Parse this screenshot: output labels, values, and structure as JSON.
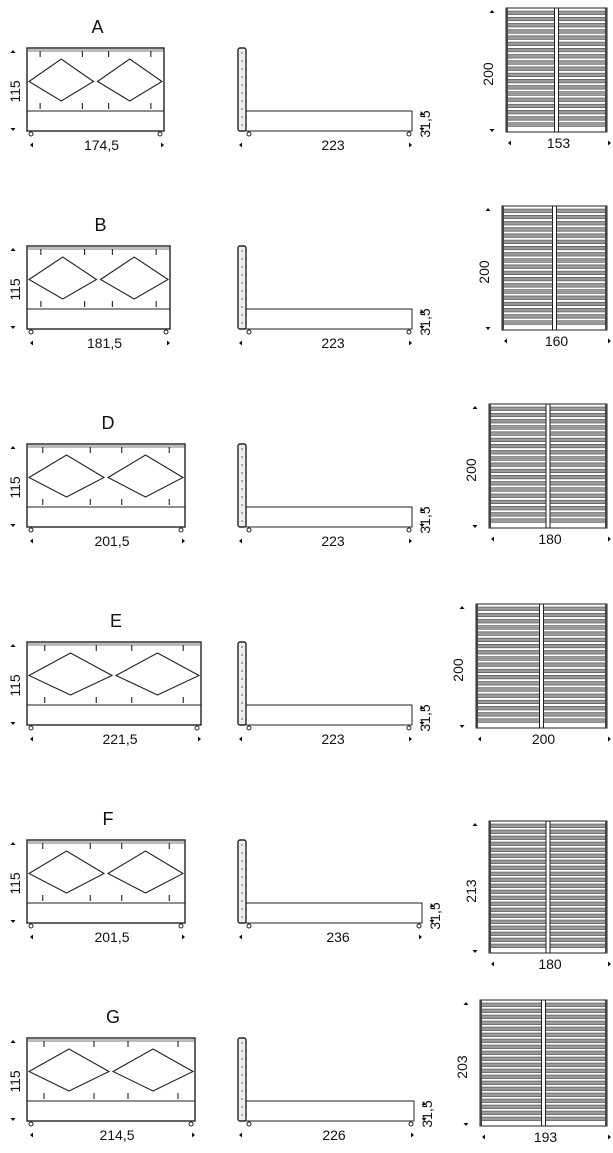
{
  "rows": [
    {
      "label": "A",
      "front_width": "174,5",
      "height": "115",
      "side_length": "223",
      "base_height": "31,5",
      "slat_length": "200",
      "slat_width": "153",
      "frame_cm": 174.5,
      "side_cm": 223,
      "slat_len_cm": 200,
      "slat_w_cm": 153
    },
    {
      "label": "B",
      "front_width": "181,5",
      "height": "115",
      "side_length": "223",
      "base_height": "31,5",
      "slat_length": "200",
      "slat_width": "160",
      "frame_cm": 181.5,
      "side_cm": 223,
      "slat_len_cm": 200,
      "slat_w_cm": 160
    },
    {
      "label": "D",
      "front_width": "201,5",
      "height": "115",
      "side_length": "223",
      "base_height": "31,5",
      "slat_length": "200",
      "slat_width": "180",
      "frame_cm": 201.5,
      "side_cm": 223,
      "slat_len_cm": 200,
      "slat_w_cm": 180
    },
    {
      "label": "E",
      "front_width": "221,5",
      "height": "115",
      "side_length": "223",
      "base_height": "31,5",
      "slat_length": "200",
      "slat_width": "200",
      "frame_cm": 221.5,
      "side_cm": 223,
      "slat_len_cm": 200,
      "slat_w_cm": 200
    },
    {
      "label": "F",
      "front_width": "201,5",
      "height": "115",
      "side_length": "236",
      "base_height": "31,5",
      "slat_length": "213",
      "slat_width": "180",
      "frame_cm": 201.5,
      "side_cm": 236,
      "slat_len_cm": 213,
      "slat_w_cm": 180
    },
    {
      "label": "G",
      "front_width": "214,5",
      "height": "115",
      "side_length": "226",
      "base_height": "31,5",
      "slat_length": "203",
      "slat_width": "193",
      "frame_cm": 214.5,
      "side_cm": 226,
      "slat_len_cm": 203,
      "slat_w_cm": 193
    }
  ]
}
